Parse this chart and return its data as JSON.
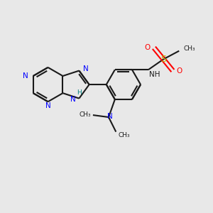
{
  "background_color": "#e8e8e8",
  "bond_color": "#1a1a1a",
  "n_color": "#0000ff",
  "s_color": "#b8b800",
  "o_color": "#ff0000",
  "nh_color": "#008080",
  "line_width": 1.5,
  "figsize": [
    3.0,
    3.0
  ],
  "dpi": 100,
  "xlim": [
    0,
    10
  ],
  "ylim": [
    0,
    10
  ]
}
